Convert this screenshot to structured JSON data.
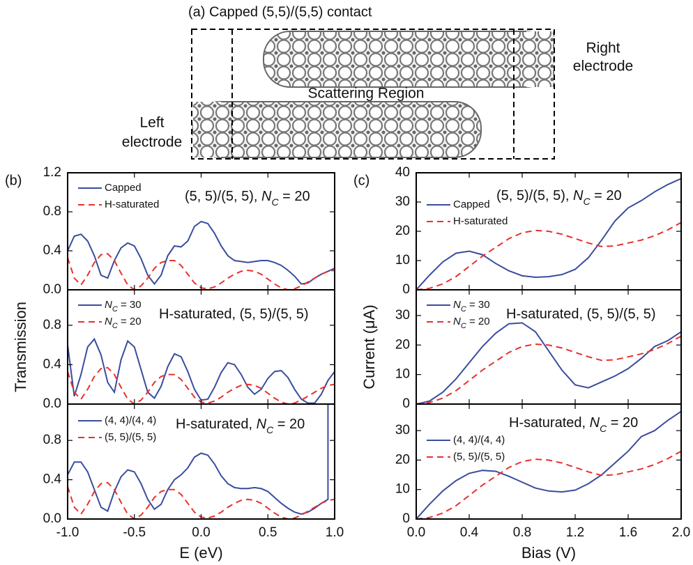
{
  "diagram": {
    "title": "(a) Capped (5,5)/(5,5) contact",
    "right_label": [
      "Right",
      "electrode"
    ],
    "center_label": "Scattering Region",
    "left_label": [
      "Left",
      "electrode"
    ]
  },
  "chart_data": [
    {
      "type": "line",
      "panel_label": "(b)",
      "xlim": [
        -1,
        1
      ],
      "ylim": [
        0,
        1.2
      ],
      "xticks": [
        {
          "value": -1,
          "label": "-1.0"
        },
        {
          "value": -0.5,
          "label": "-0.5"
        },
        {
          "value": 0,
          "label": "0.0"
        },
        {
          "value": 0.5,
          "label": "0.5"
        },
        {
          "value": 1,
          "label": "1.0"
        }
      ],
      "show_xticklabels": false,
      "yticks": [
        {
          "value": 0,
          "label": "0.0"
        },
        {
          "value": 0.4,
          "label": "0.4"
        },
        {
          "value": 0.8,
          "label": "0.8"
        },
        {
          "value": 1.2,
          "label": "1.2"
        }
      ],
      "legend": "upper left",
      "annotation": [
        {
          "text": "(5, 5)/(5, 5), "
        },
        {
          "text": "N",
          "style": "italic"
        },
        {
          "text": "C",
          "style": "sub"
        },
        {
          "text": " = 20"
        }
      ],
      "x": [
        -1.0,
        -0.95,
        -0.9,
        -0.85,
        -0.8,
        -0.75,
        -0.7,
        -0.65,
        -0.6,
        -0.55,
        -0.5,
        -0.45,
        -0.4,
        -0.35,
        -0.3,
        -0.25,
        -0.2,
        -0.15,
        -0.1,
        -0.05,
        0.0,
        0.05,
        0.1,
        0.15,
        0.2,
        0.25,
        0.3,
        0.35,
        0.4,
        0.45,
        0.5,
        0.55,
        0.6,
        0.65,
        0.7,
        0.75,
        0.8,
        0.85,
        0.9,
        0.95,
        1.0
      ],
      "series": [
        {
          "name": [
            {
              "text": "Capped"
            }
          ],
          "color": "#3a4c9e",
          "dash": false,
          "values": [
            0.4,
            0.55,
            0.57,
            0.5,
            0.35,
            0.15,
            0.12,
            0.3,
            0.43,
            0.48,
            0.45,
            0.32,
            0.15,
            0.06,
            0.15,
            0.35,
            0.45,
            0.44,
            0.5,
            0.65,
            0.7,
            0.68,
            0.58,
            0.45,
            0.35,
            0.3,
            0.29,
            0.28,
            0.29,
            0.3,
            0.3,
            0.28,
            0.25,
            0.2,
            0.14,
            0.06,
            0.07,
            0.12,
            0.16,
            0.19,
            0.22
          ]
        },
        {
          "name": [
            {
              "text": "H-saturated"
            }
          ],
          "color": "#e8302c",
          "dash": true,
          "values": [
            0.33,
            0.12,
            0.05,
            0.15,
            0.28,
            0.36,
            0.37,
            0.3,
            0.17,
            0.05,
            0.0,
            0.04,
            0.12,
            0.22,
            0.28,
            0.3,
            0.3,
            0.25,
            0.16,
            0.07,
            0.02,
            0.01,
            0.03,
            0.07,
            0.12,
            0.16,
            0.19,
            0.2,
            0.19,
            0.16,
            0.11,
            0.06,
            0.02,
            0.0,
            0.01,
            0.04,
            0.08,
            0.12,
            0.16,
            0.19,
            0.2
          ]
        }
      ]
    },
    {
      "type": "line",
      "ylabel": "Transmission",
      "xlim": [
        -1,
        1
      ],
      "ylim": [
        0,
        1.16
      ],
      "xticks": [
        {
          "value": -1,
          "label": "-1.0"
        },
        {
          "value": -0.5,
          "label": "-0.5"
        },
        {
          "value": 0,
          "label": "0.0"
        },
        {
          "value": 0.5,
          "label": "0.5"
        },
        {
          "value": 1,
          "label": "1.0"
        }
      ],
      "show_xticklabels": false,
      "yticks": [
        {
          "value": 0,
          "label": "0.0"
        },
        {
          "value": 0.4,
          "label": "0.4"
        },
        {
          "value": 0.8,
          "label": "0.8"
        }
      ],
      "legend": "upper left",
      "annotation": [
        {
          "text": "H-saturated, (5, 5)/(5, 5)"
        }
      ],
      "x": [
        -1.0,
        -0.95,
        -0.9,
        -0.85,
        -0.8,
        -0.75,
        -0.7,
        -0.65,
        -0.6,
        -0.55,
        -0.5,
        -0.45,
        -0.4,
        -0.35,
        -0.3,
        -0.25,
        -0.2,
        -0.15,
        -0.1,
        -0.05,
        0.0,
        0.05,
        0.1,
        0.15,
        0.2,
        0.25,
        0.3,
        0.35,
        0.4,
        0.45,
        0.5,
        0.55,
        0.6,
        0.65,
        0.7,
        0.75,
        0.8,
        0.85,
        0.9,
        0.95,
        1.0
      ],
      "series": [
        {
          "name": [
            {
              "text": "N",
              "style": "italic"
            },
            {
              "text": "C",
              "style": "sub"
            },
            {
              "text": " = 30"
            }
          ],
          "color": "#3a4c9e",
          "dash": false,
          "values": [
            0.6,
            0.08,
            0.3,
            0.58,
            0.66,
            0.5,
            0.22,
            0.12,
            0.45,
            0.64,
            0.58,
            0.35,
            0.12,
            0.06,
            0.18,
            0.38,
            0.51,
            0.48,
            0.33,
            0.15,
            0.04,
            0.05,
            0.17,
            0.32,
            0.42,
            0.4,
            0.3,
            0.17,
            0.1,
            0.15,
            0.26,
            0.33,
            0.34,
            0.27,
            0.15,
            0.05,
            0.01,
            0.01,
            0.1,
            0.24,
            0.33
          ]
        },
        {
          "name": [
            {
              "text": "N",
              "style": "italic"
            },
            {
              "text": "C",
              "style": "sub"
            },
            {
              "text": " = 20"
            }
          ],
          "color": "#e8302c",
          "dash": true,
          "values": [
            0.33,
            0.12,
            0.05,
            0.15,
            0.28,
            0.36,
            0.37,
            0.3,
            0.17,
            0.05,
            0.0,
            0.04,
            0.12,
            0.22,
            0.28,
            0.3,
            0.3,
            0.25,
            0.16,
            0.07,
            0.02,
            0.01,
            0.03,
            0.07,
            0.12,
            0.16,
            0.19,
            0.2,
            0.19,
            0.16,
            0.11,
            0.06,
            0.02,
            0.0,
            0.01,
            0.04,
            0.08,
            0.12,
            0.16,
            0.19,
            0.2
          ]
        }
      ]
    },
    {
      "type": "line",
      "xlabel": "E (eV)",
      "xlim": [
        -1,
        1
      ],
      "ylim": [
        0,
        1.17
      ],
      "xticks": [
        {
          "value": -1,
          "label": "-1.0"
        },
        {
          "value": -0.5,
          "label": "-0.5"
        },
        {
          "value": 0,
          "label": "0.0"
        },
        {
          "value": 0.5,
          "label": "0.5"
        },
        {
          "value": 1,
          "label": "1.0"
        }
      ],
      "show_xticklabels": true,
      "yticks": [
        {
          "value": 0,
          "label": "0.0"
        },
        {
          "value": 0.4,
          "label": "0.4"
        },
        {
          "value": 0.8,
          "label": "0.8"
        }
      ],
      "legend": "upper left",
      "annotation": [
        {
          "text": "H-saturated, "
        },
        {
          "text": "N",
          "style": "italic"
        },
        {
          "text": "C",
          "style": "sub"
        },
        {
          "text": " = 20"
        }
      ],
      "x": [
        -1.0,
        -0.95,
        -0.9,
        -0.85,
        -0.8,
        -0.75,
        -0.7,
        -0.65,
        -0.6,
        -0.55,
        -0.5,
        -0.45,
        -0.4,
        -0.35,
        -0.3,
        -0.25,
        -0.2,
        -0.15,
        -0.1,
        -0.05,
        0.0,
        0.05,
        0.1,
        0.15,
        0.2,
        0.25,
        0.3,
        0.35,
        0.4,
        0.45,
        0.5,
        0.55,
        0.6,
        0.65,
        0.7,
        0.75,
        0.8,
        0.85,
        0.9,
        0.95,
        1.0
      ],
      "series": [
        {
          "name": [
            {
              "text": "(4, 4)/(4, 4)"
            }
          ],
          "color": "#3a4c9e",
          "dash": false,
          "x": [
            -1.0,
            -0.95,
            -0.9,
            -0.85,
            -0.8,
            -0.75,
            -0.7,
            -0.65,
            -0.6,
            -0.55,
            -0.5,
            -0.45,
            -0.4,
            -0.35,
            -0.3,
            -0.25,
            -0.2,
            -0.15,
            -0.1,
            -0.05,
            0.0,
            0.05,
            0.1,
            0.15,
            0.2,
            0.25,
            0.3,
            0.35,
            0.4,
            0.45,
            0.5,
            0.55,
            0.6,
            0.65,
            0.7,
            0.75,
            0.8,
            0.85,
            0.9,
            0.95,
            0.95
          ],
          "values": [
            0.45,
            0.58,
            0.58,
            0.48,
            0.3,
            0.12,
            0.08,
            0.28,
            0.43,
            0.5,
            0.48,
            0.36,
            0.2,
            0.1,
            0.15,
            0.3,
            0.4,
            0.45,
            0.52,
            0.63,
            0.67,
            0.65,
            0.56,
            0.44,
            0.36,
            0.32,
            0.31,
            0.31,
            0.32,
            0.31,
            0.28,
            0.22,
            0.16,
            0.11,
            0.07,
            0.05,
            0.07,
            0.11,
            0.16,
            0.2,
            1.17
          ]
        },
        {
          "name": [
            {
              "text": "(5, 5)/(5, 5)"
            }
          ],
          "color": "#e8302c",
          "dash": true,
          "values": [
            0.33,
            0.12,
            0.05,
            0.15,
            0.28,
            0.36,
            0.37,
            0.3,
            0.17,
            0.05,
            0.0,
            0.04,
            0.12,
            0.22,
            0.28,
            0.3,
            0.3,
            0.25,
            0.16,
            0.07,
            0.02,
            0.01,
            0.03,
            0.07,
            0.12,
            0.16,
            0.19,
            0.2,
            0.19,
            0.16,
            0.11,
            0.06,
            0.02,
            0.0,
            0.01,
            0.04,
            0.08,
            0.12,
            0.16,
            0.19,
            0.2
          ]
        }
      ]
    },
    {
      "type": "line",
      "panel_label": "(c)",
      "xlim": [
        0,
        2
      ],
      "ylim": [
        0,
        40
      ],
      "xticks": [
        {
          "value": 0,
          "label": "0.0"
        },
        {
          "value": 0.4,
          "label": "0.4"
        },
        {
          "value": 0.8,
          "label": "0.8"
        },
        {
          "value": 1.2,
          "label": "1.2"
        },
        {
          "value": 1.6,
          "label": "1.6"
        },
        {
          "value": 2,
          "label": "2.0"
        }
      ],
      "show_xticklabels": false,
      "yticks": [
        0,
        10,
        20,
        30,
        40
      ],
      "legend": "upper left",
      "annotation": [
        {
          "text": "(5, 5)/(5, 5), "
        },
        {
          "text": "N",
          "style": "italic"
        },
        {
          "text": "C",
          "style": "sub"
        },
        {
          "text": " = 20"
        }
      ],
      "x": [
        0.0,
        0.1,
        0.2,
        0.3,
        0.4,
        0.5,
        0.6,
        0.7,
        0.8,
        0.9,
        1.0,
        1.1,
        1.2,
        1.3,
        1.4,
        1.5,
        1.6,
        1.7,
        1.8,
        1.9,
        2.0
      ],
      "series": [
        {
          "name": [
            {
              "text": "Capped"
            }
          ],
          "color": "#3a4c9e",
          "dash": false,
          "values": [
            0,
            5,
            9.5,
            12.5,
            13.2,
            12,
            9,
            6.5,
            4.8,
            4.3,
            4.5,
            5.2,
            7,
            11,
            17,
            23.5,
            28,
            30.5,
            33.5,
            36,
            38
          ]
        },
        {
          "name": [
            {
              "text": "H-saturated"
            }
          ],
          "color": "#e8302c",
          "dash": true,
          "values": [
            0,
            0.5,
            2,
            4.5,
            8,
            11.5,
            14.5,
            17.5,
            19.5,
            20.3,
            20,
            19,
            17.5,
            16,
            14.8,
            15,
            16,
            17,
            18.5,
            20.5,
            23
          ]
        }
      ]
    },
    {
      "type": "line",
      "ylabel": "Current (μA)",
      "xlim": [
        0,
        2
      ],
      "ylim": [
        0,
        38.7
      ],
      "xticks": [
        {
          "value": 0,
          "label": "0.0"
        },
        {
          "value": 0.4,
          "label": "0.4"
        },
        {
          "value": 0.8,
          "label": "0.8"
        },
        {
          "value": 1.2,
          "label": "1.2"
        },
        {
          "value": 1.6,
          "label": "1.6"
        },
        {
          "value": 2,
          "label": "2.0"
        }
      ],
      "show_xticklabels": false,
      "yticks": [
        0,
        10,
        20,
        30
      ],
      "legend": "upper left",
      "annotation": [
        {
          "text": "H-saturated, (5, 5)/(5, 5)"
        }
      ],
      "x": [
        0.0,
        0.1,
        0.2,
        0.3,
        0.4,
        0.5,
        0.6,
        0.7,
        0.8,
        0.9,
        1.0,
        1.1,
        1.2,
        1.3,
        1.4,
        1.5,
        1.6,
        1.7,
        1.8,
        1.9,
        2.0
      ],
      "series": [
        {
          "name": [
            {
              "text": "N",
              "style": "italic"
            },
            {
              "text": "C",
              "style": "sub"
            },
            {
              "text": " = 30"
            }
          ],
          "color": "#3a4c9e",
          "dash": false,
          "values": [
            0,
            1,
            4,
            8.5,
            14,
            19.5,
            24,
            27.2,
            27.5,
            24.5,
            18,
            11.5,
            6.5,
            5.5,
            7.5,
            9.5,
            12,
            15.5,
            19.5,
            21.5,
            24.5
          ]
        },
        {
          "name": [
            {
              "text": "N",
              "style": "italic"
            },
            {
              "text": "C",
              "style": "sub"
            },
            {
              "text": " = 20"
            }
          ],
          "color": "#e8302c",
          "dash": true,
          "values": [
            0,
            0.5,
            2,
            4.5,
            8,
            11.5,
            14.5,
            17.5,
            19.5,
            20.3,
            20,
            19,
            17.5,
            16,
            14.8,
            15,
            16,
            17,
            18.5,
            20.5,
            23
          ]
        }
      ]
    },
    {
      "type": "line",
      "xlabel": "Bias (V)",
      "xlim": [
        0,
        2
      ],
      "ylim": [
        0,
        39
      ],
      "xticks": [
        {
          "value": 0,
          "label": "0.0"
        },
        {
          "value": 0.4,
          "label": "0.4"
        },
        {
          "value": 0.8,
          "label": "0.8"
        },
        {
          "value": 1.2,
          "label": "1.2"
        },
        {
          "value": 1.6,
          "label": "1.6"
        },
        {
          "value": 2,
          "label": "2.0"
        }
      ],
      "show_xticklabels": true,
      "yticks": [
        0,
        10,
        20,
        30
      ],
      "legend": "upper left",
      "annotation": [
        {
          "text": "H-saturated, "
        },
        {
          "text": "N",
          "style": "italic"
        },
        {
          "text": "C",
          "style": "sub"
        },
        {
          "text": " = 20"
        }
      ],
      "x": [
        0.0,
        0.1,
        0.2,
        0.3,
        0.4,
        0.5,
        0.6,
        0.7,
        0.8,
        0.9,
        1.0,
        1.1,
        1.2,
        1.3,
        1.4,
        1.5,
        1.6,
        1.7,
        1.8,
        1.9,
        2.0
      ],
      "series": [
        {
          "name": [
            {
              "text": "(4, 4)/(4, 4)"
            }
          ],
          "color": "#3a4c9e",
          "dash": false,
          "values": [
            0,
            5,
            9.5,
            13,
            15.5,
            16.5,
            16.2,
            14.5,
            12.5,
            10.5,
            9.5,
            9.2,
            9.8,
            12,
            15,
            19,
            23,
            28,
            30,
            33.5,
            36.5
          ]
        },
        {
          "name": [
            {
              "text": "(5, 5)/(5, 5)"
            }
          ],
          "color": "#e8302c",
          "dash": true,
          "values": [
            0,
            0.5,
            2,
            4.5,
            8,
            11.5,
            14.5,
            17.5,
            19.5,
            20.3,
            20,
            19,
            17.5,
            16,
            14.8,
            15,
            16,
            17,
            18.5,
            20.5,
            23
          ]
        }
      ]
    }
  ]
}
